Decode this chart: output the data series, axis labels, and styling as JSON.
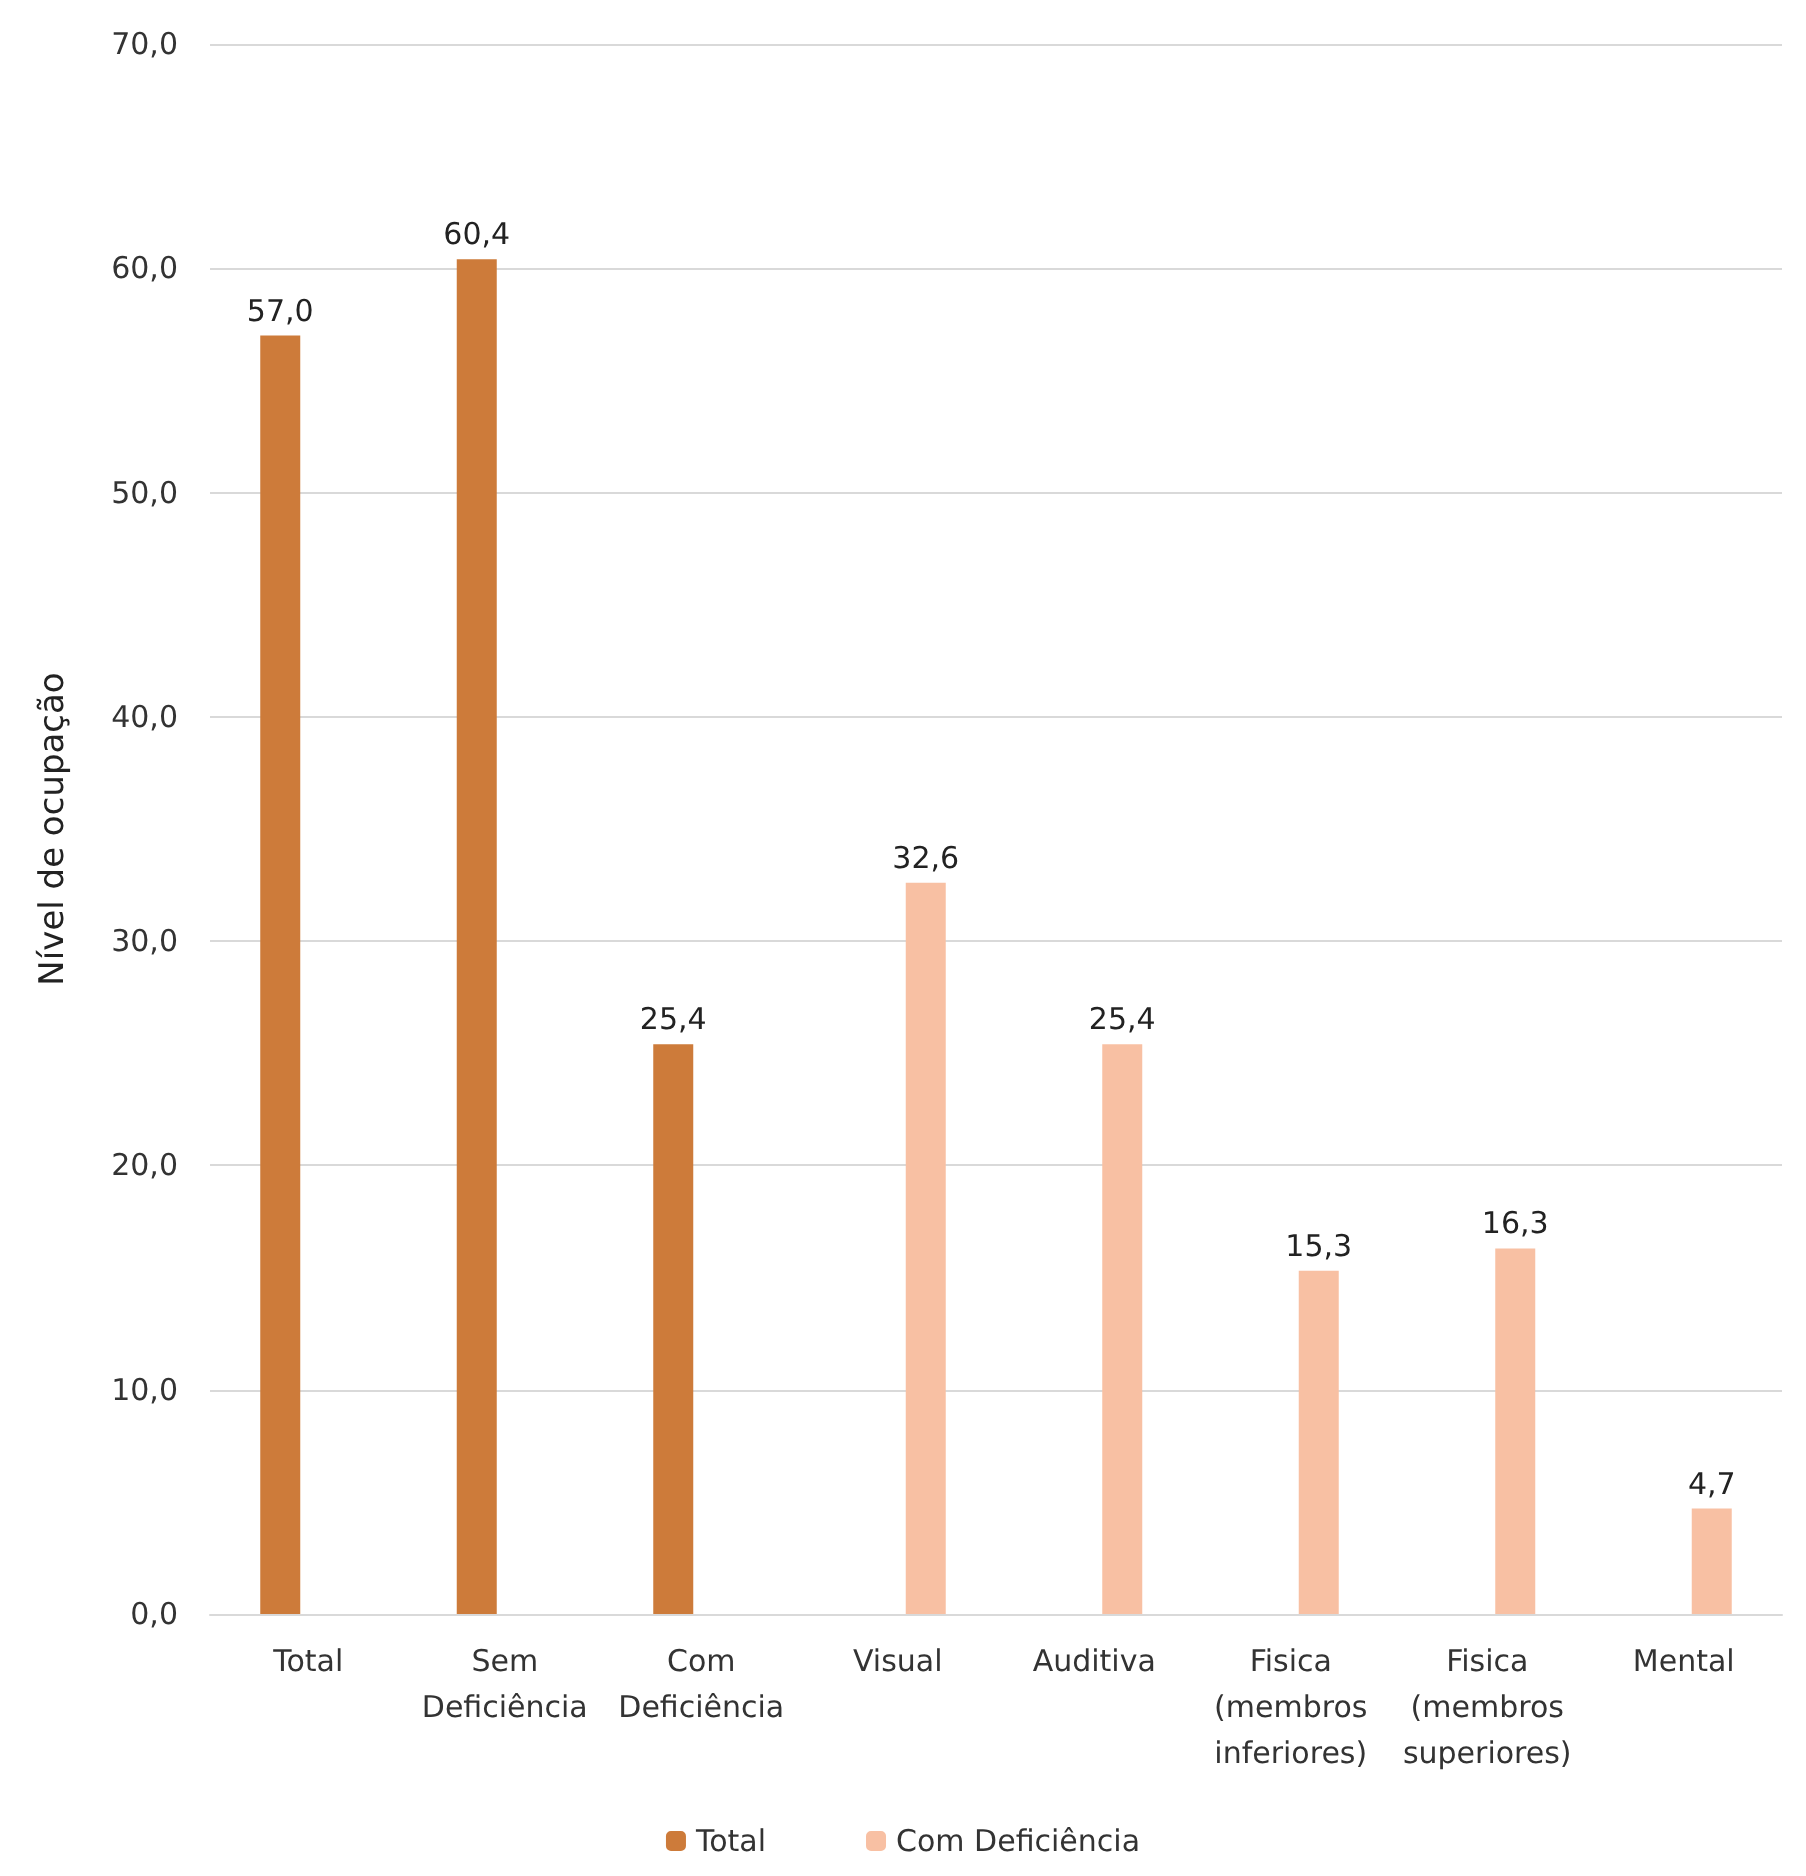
{
  "chart_data": {
    "type": "bar",
    "ylabel": "Nível de ocupação",
    "categories": [
      "Total",
      "Sem\nDeficiência",
      "Com\nDeficiência",
      "Visual",
      "Auditiva",
      "Fisica\n(membros\ninferiores)",
      "Fisica\n(membros\nsuperiores)",
      "Mental"
    ],
    "series": [
      {
        "name": "Total",
        "color": "#cd7b3a",
        "values": [
          57.0,
          60.4,
          25.4,
          null,
          null,
          null,
          null,
          null
        ],
        "value_labels": [
          "57,0",
          "60,4",
          "25,4",
          null,
          null,
          null,
          null,
          null
        ]
      },
      {
        "name": "Com Deficiência",
        "color": "#f8c0a3",
        "values": [
          null,
          null,
          null,
          32.6,
          25.4,
          15.3,
          16.3,
          4.7
        ],
        "value_labels": [
          null,
          null,
          null,
          "32,6",
          "25,4",
          "15,3",
          "16,3",
          "4,7"
        ]
      }
    ],
    "ylim": [
      0,
      70
    ],
    "yticks": [
      {
        "value": 0,
        "label": "0,0"
      },
      {
        "value": 10,
        "label": "10,0"
      },
      {
        "value": 20,
        "label": "20,0"
      },
      {
        "value": 30,
        "label": "30,0"
      },
      {
        "value": 40,
        "label": "40,0"
      },
      {
        "value": 50,
        "label": "50,0"
      },
      {
        "value": 60,
        "label": "60,0"
      },
      {
        "value": 70,
        "label": "70,0"
      }
    ],
    "grid": "y",
    "legend": "bottom"
  }
}
